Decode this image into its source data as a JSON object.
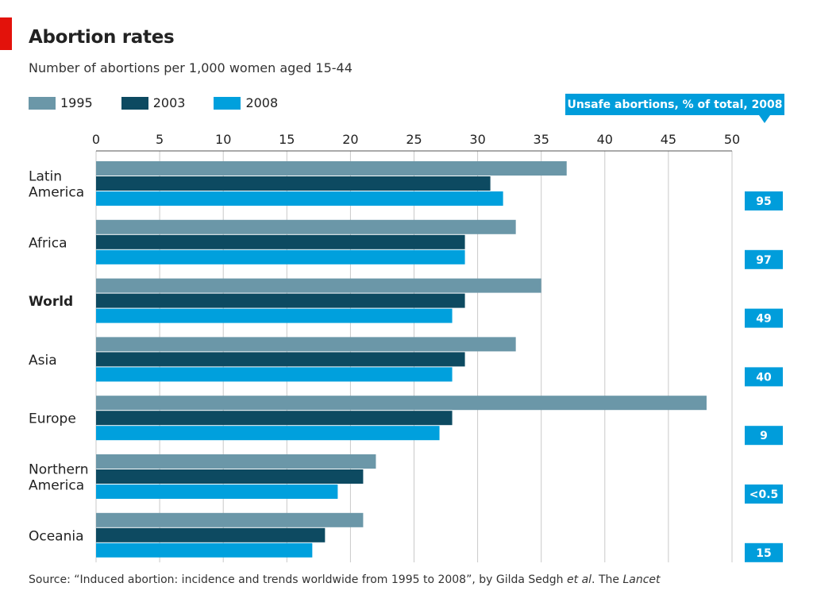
{
  "header": {
    "title": "Abortion rates",
    "subtitle": "Number of abortions per 1,000 women aged 15-44"
  },
  "legend": [
    {
      "label": "1995",
      "color": "#6b97a8"
    },
    {
      "label": "2003",
      "color": "#0d4a61"
    },
    {
      "label": "2008",
      "color": "#00a0dd"
    }
  ],
  "unsafe": {
    "title": "Unsafe abortions, % of total, 2008",
    "color": "#009ddb"
  },
  "chart_data": {
    "type": "bar",
    "orientation": "horizontal",
    "title": "Abortion rates",
    "subtitle": "Number of abortions per 1,000 women aged 15-44",
    "xlim": [
      0,
      50
    ],
    "xticks": [
      0,
      5,
      10,
      15,
      20,
      25,
      30,
      35,
      40,
      45,
      50
    ],
    "axis_position": "top",
    "grid": true,
    "legend_position": "top-left",
    "categories": [
      "Latin America",
      "Africa",
      "World",
      "Asia",
      "Europe",
      "Northern America",
      "Oceania"
    ],
    "category_lines": [
      [
        "Latin",
        "America"
      ],
      [
        "Africa"
      ],
      [
        "World"
      ],
      [
        "Asia"
      ],
      [
        "Europe"
      ],
      [
        "Northern",
        "America"
      ],
      [
        "Oceania"
      ]
    ],
    "bold_category": "World",
    "series": [
      {
        "name": "1995",
        "color": "#6b97a8",
        "values": [
          37,
          33,
          35,
          33,
          48,
          22,
          21
        ]
      },
      {
        "name": "2003",
        "color": "#0d4a61",
        "values": [
          31,
          29,
          29,
          29,
          28,
          21,
          18
        ]
      },
      {
        "name": "2008",
        "color": "#00a0dd",
        "values": [
          32,
          29,
          28,
          28,
          27,
          19,
          17
        ]
      }
    ],
    "unsafe_label": "Unsafe abortions, % of total, 2008",
    "unsafe_values": [
      "95",
      "97",
      "49",
      "40",
      "9",
      "<0.5",
      "15"
    ]
  },
  "source": {
    "prefix": "Source: “Induced abortion: incidence and trends worldwide from 1995 to 2008”, by Gilda Sedgh ",
    "etal": "et al",
    "middle": ". The ",
    "journal": "Lancet"
  }
}
